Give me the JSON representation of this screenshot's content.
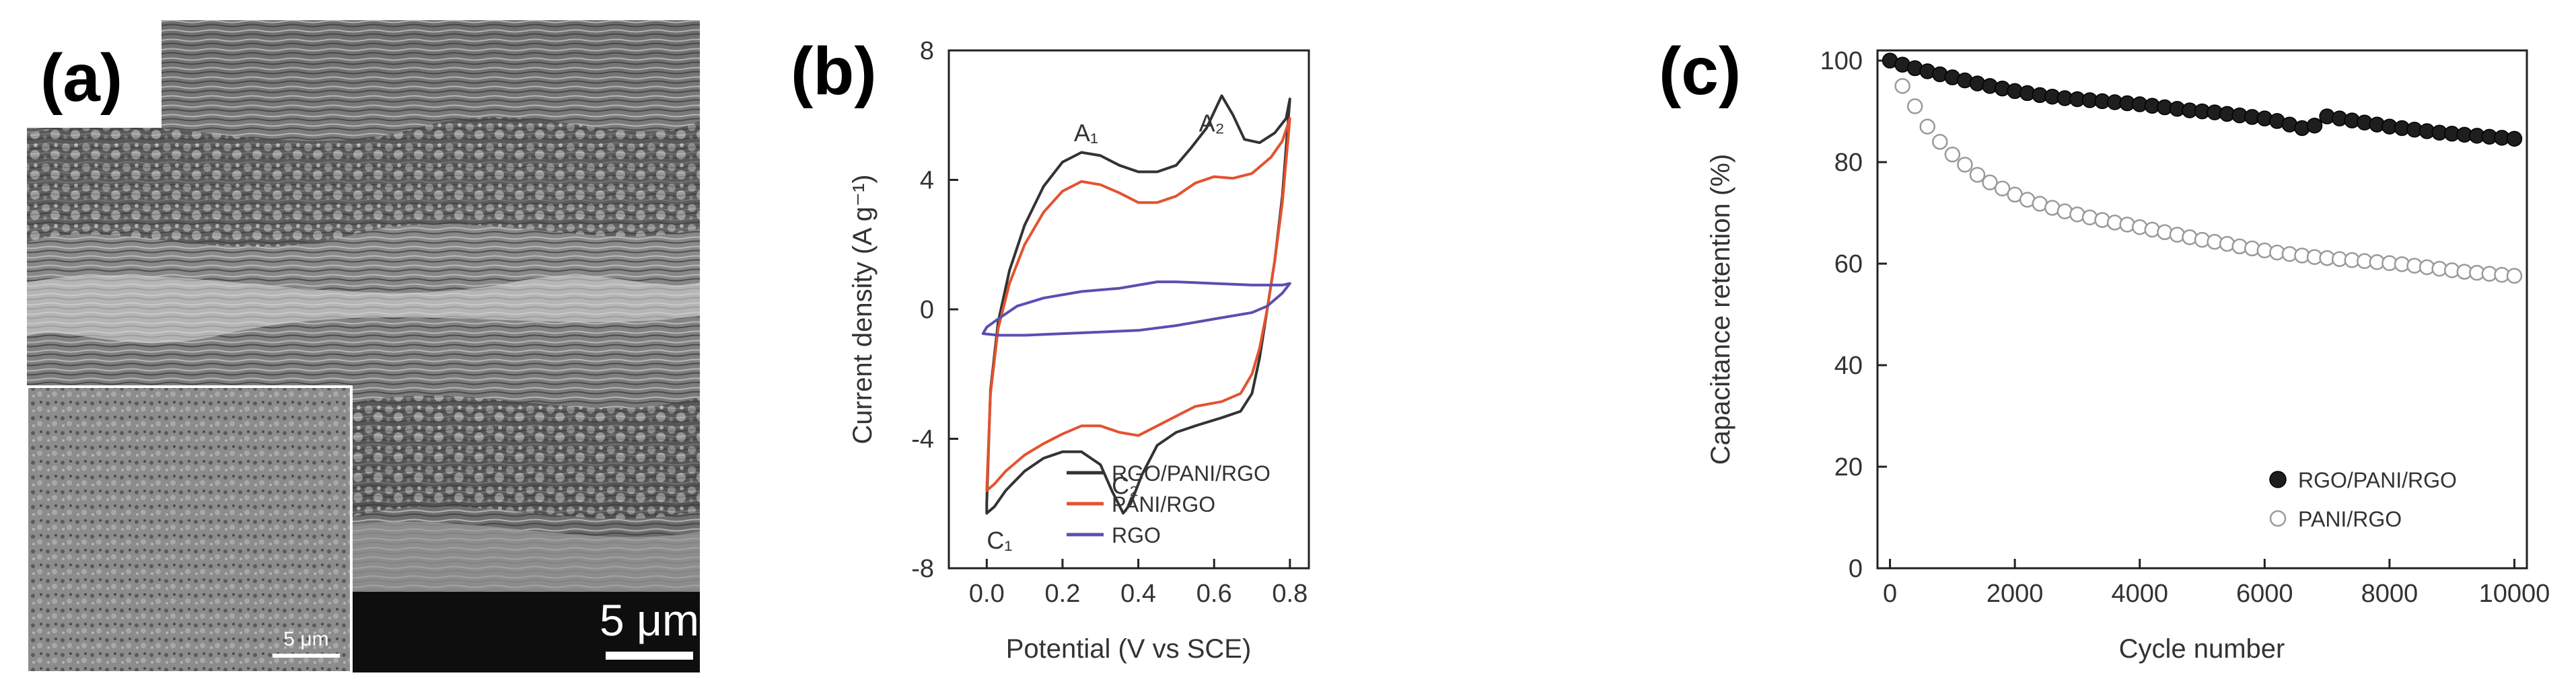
{
  "panel_a": {
    "label": "(a)",
    "scale_bar_main": "5 μm",
    "scale_bar_inset": "5 μm"
  },
  "chart_data": [
    {
      "panel_label": "(b)",
      "type": "line",
      "xlabel": "Potential (V vs SCE)",
      "ylabel": "Current density (A g⁻¹)",
      "xlim": [
        -0.1,
        0.85
      ],
      "ylim": [
        -8,
        8
      ],
      "xticks": [
        0.0,
        0.2,
        0.4,
        0.6,
        0.8
      ],
      "xtick_labels": [
        "0.0",
        "0.2",
        "0.4",
        "0.6",
        "0.8"
      ],
      "yticks": [
        -8,
        -4,
        0,
        4,
        8
      ],
      "ytick_labels": [
        "-8",
        "-4",
        "0",
        "4",
        "8"
      ],
      "annotations": [
        {
          "text": "A₁",
          "x": 0.23,
          "y": 5.2
        },
        {
          "text": "A₂",
          "x": 0.56,
          "y": 5.5
        },
        {
          "text": "C₁",
          "x": 0.0,
          "y": -7.4
        },
        {
          "text": "C₂",
          "x": 0.33,
          "y": -5.7
        }
      ],
      "legend_position": "bottom-right",
      "series": [
        {
          "name": "RGO/PANI/RGO",
          "color": "#333333",
          "upper": [
            [
              0.0,
              -6.0
            ],
            [
              0.01,
              -2.5
            ],
            [
              0.03,
              -0.4
            ],
            [
              0.06,
              1.2
            ],
            [
              0.1,
              2.6
            ],
            [
              0.15,
              3.8
            ],
            [
              0.2,
              4.55
            ],
            [
              0.25,
              4.85
            ],
            [
              0.3,
              4.75
            ],
            [
              0.35,
              4.45
            ],
            [
              0.4,
              4.25
            ],
            [
              0.45,
              4.25
            ],
            [
              0.5,
              4.45
            ],
            [
              0.54,
              5.0
            ],
            [
              0.58,
              5.6
            ],
            [
              0.62,
              6.6
            ],
            [
              0.65,
              6.0
            ],
            [
              0.68,
              5.25
            ],
            [
              0.72,
              5.15
            ],
            [
              0.76,
              5.45
            ],
            [
              0.79,
              5.9
            ],
            [
              0.8,
              6.5
            ]
          ],
          "lower": [
            [
              0.8,
              6.5
            ],
            [
              0.78,
              3.5
            ],
            [
              0.76,
              1.5
            ],
            [
              0.74,
              0.0
            ],
            [
              0.72,
              -1.5
            ],
            [
              0.7,
              -2.6
            ],
            [
              0.67,
              -3.15
            ],
            [
              0.62,
              -3.35
            ],
            [
              0.55,
              -3.6
            ],
            [
              0.5,
              -3.8
            ],
            [
              0.45,
              -4.2
            ],
            [
              0.41,
              -5.1
            ],
            [
              0.38,
              -6.0
            ],
            [
              0.36,
              -6.3
            ],
            [
              0.33,
              -5.6
            ],
            [
              0.3,
              -4.8
            ],
            [
              0.25,
              -4.4
            ],
            [
              0.2,
              -4.4
            ],
            [
              0.15,
              -4.6
            ],
            [
              0.1,
              -5.0
            ],
            [
              0.05,
              -5.6
            ],
            [
              0.02,
              -6.1
            ],
            [
              0.0,
              -6.3
            ]
          ]
        },
        {
          "name": "PANI/RGO",
          "color": "#e2532f",
          "upper": [
            [
              0.0,
              -5.6
            ],
            [
              0.01,
              -2.6
            ],
            [
              0.03,
              -0.6
            ],
            [
              0.06,
              0.8
            ],
            [
              0.1,
              2.0
            ],
            [
              0.15,
              3.0
            ],
            [
              0.2,
              3.65
            ],
            [
              0.25,
              3.95
            ],
            [
              0.3,
              3.85
            ],
            [
              0.35,
              3.6
            ],
            [
              0.4,
              3.3
            ],
            [
              0.45,
              3.3
            ],
            [
              0.5,
              3.5
            ],
            [
              0.55,
              3.9
            ],
            [
              0.6,
              4.1
            ],
            [
              0.65,
              4.05
            ],
            [
              0.7,
              4.2
            ],
            [
              0.75,
              4.7
            ],
            [
              0.78,
              5.2
            ],
            [
              0.8,
              5.9
            ]
          ],
          "lower": [
            [
              0.8,
              5.9
            ],
            [
              0.78,
              3.3
            ],
            [
              0.76,
              1.5
            ],
            [
              0.74,
              0.0
            ],
            [
              0.72,
              -1.2
            ],
            [
              0.7,
              -2.0
            ],
            [
              0.67,
              -2.6
            ],
            [
              0.62,
              -2.85
            ],
            [
              0.55,
              -3.0
            ],
            [
              0.5,
              -3.3
            ],
            [
              0.45,
              -3.6
            ],
            [
              0.4,
              -3.9
            ],
            [
              0.35,
              -3.8
            ],
            [
              0.3,
              -3.6
            ],
            [
              0.25,
              -3.6
            ],
            [
              0.2,
              -3.85
            ],
            [
              0.15,
              -4.15
            ],
            [
              0.1,
              -4.5
            ],
            [
              0.05,
              -5.0
            ],
            [
              0.02,
              -5.4
            ],
            [
              0.0,
              -5.6
            ]
          ]
        },
        {
          "name": "RGO",
          "color": "#5a4fb0",
          "upper": [
            [
              -0.01,
              -0.75
            ],
            [
              0.0,
              -0.55
            ],
            [
              0.03,
              -0.3
            ],
            [
              0.08,
              0.1
            ],
            [
              0.15,
              0.35
            ],
            [
              0.25,
              0.55
            ],
            [
              0.35,
              0.65
            ],
            [
              0.45,
              0.85
            ],
            [
              0.5,
              0.85
            ],
            [
              0.6,
              0.8
            ],
            [
              0.7,
              0.75
            ],
            [
              0.78,
              0.75
            ],
            [
              0.8,
              0.8
            ]
          ],
          "lower": [
            [
              0.8,
              0.8
            ],
            [
              0.78,
              0.5
            ],
            [
              0.74,
              0.1
            ],
            [
              0.7,
              -0.1
            ],
            [
              0.6,
              -0.3
            ],
            [
              0.5,
              -0.5
            ],
            [
              0.4,
              -0.65
            ],
            [
              0.3,
              -0.7
            ],
            [
              0.2,
              -0.75
            ],
            [
              0.1,
              -0.8
            ],
            [
              0.03,
              -0.8
            ],
            [
              -0.01,
              -0.75
            ]
          ]
        }
      ]
    },
    {
      "panel_label": "(c)",
      "type": "scatter",
      "xlabel": "Cycle number",
      "ylabel": "Capacitance retention (%)",
      "xlim": [
        -200,
        10200
      ],
      "ylim": [
        0,
        102
      ],
      "xticks": [
        0,
        2000,
        4000,
        6000,
        8000,
        10000
      ],
      "xtick_labels": [
        "0",
        "2000",
        "4000",
        "6000",
        "8000",
        "10000"
      ],
      "yticks": [
        0,
        20,
        40,
        60,
        80,
        100
      ],
      "ytick_labels": [
        "0",
        "20",
        "40",
        "60",
        "80",
        "100"
      ],
      "legend_position": "bottom-right",
      "series": [
        {
          "name": "RGO/PANI/RGO",
          "marker": "filled",
          "x": [
            0,
            200,
            400,
            600,
            800,
            1000,
            1200,
            1400,
            1600,
            1800,
            2000,
            2200,
            2400,
            2600,
            2800,
            3000,
            3200,
            3400,
            3600,
            3800,
            4000,
            4200,
            4400,
            4600,
            4800,
            5000,
            5200,
            5400,
            5600,
            5800,
            6000,
            6200,
            6400,
            6600,
            6800,
            7000,
            7200,
            7400,
            7600,
            7800,
            8000,
            8200,
            8400,
            8600,
            8800,
            9000,
            9200,
            9400,
            9600,
            9800,
            10000
          ],
          "values": [
            100,
            99.2,
            98.5,
            97.9,
            97.3,
            96.7,
            96.1,
            95.5,
            95,
            94.5,
            94,
            93.6,
            93.2,
            92.9,
            92.6,
            92.4,
            92.2,
            92,
            91.8,
            91.6,
            91.4,
            91.1,
            90.8,
            90.5,
            90.2,
            90,
            89.8,
            89.5,
            89.2,
            88.9,
            88.6,
            88.1,
            87.4,
            86.7,
            87.2,
            89,
            88.6,
            88.2,
            87.8,
            87.4,
            87,
            86.7,
            86.4,
            86.1,
            85.8,
            85.6,
            85.4,
            85.2,
            85,
            84.8,
            84.6
          ]
        },
        {
          "name": "PANI/RGO",
          "marker": "open",
          "x": [
            200,
            400,
            600,
            800,
            1000,
            1200,
            1400,
            1600,
            1800,
            2000,
            2200,
            2400,
            2600,
            2800,
            3000,
            3200,
            3400,
            3600,
            3800,
            4000,
            4200,
            4400,
            4600,
            4800,
            5000,
            5200,
            5400,
            5600,
            5800,
            6000,
            6200,
            6400,
            6600,
            6800,
            7000,
            7200,
            7400,
            7600,
            7800,
            8000,
            8200,
            8400,
            8600,
            8800,
            9000,
            9200,
            9400,
            9600,
            9800,
            10000
          ],
          "values": [
            95,
            91,
            87,
            84,
            81.5,
            79.5,
            77.5,
            76,
            74.8,
            73.6,
            72.6,
            71.8,
            71,
            70.3,
            69.7,
            69.1,
            68.6,
            68.1,
            67.7,
            67.2,
            66.7,
            66.2,
            65.7,
            65.2,
            64.7,
            64.3,
            63.9,
            63.4,
            63,
            62.6,
            62.2,
            61.9,
            61.6,
            61.3,
            61.1,
            60.9,
            60.7,
            60.5,
            60.3,
            60.1,
            59.9,
            59.6,
            59.3,
            59,
            58.7,
            58.4,
            58.2,
            58,
            57.8,
            57.6
          ]
        }
      ]
    }
  ]
}
